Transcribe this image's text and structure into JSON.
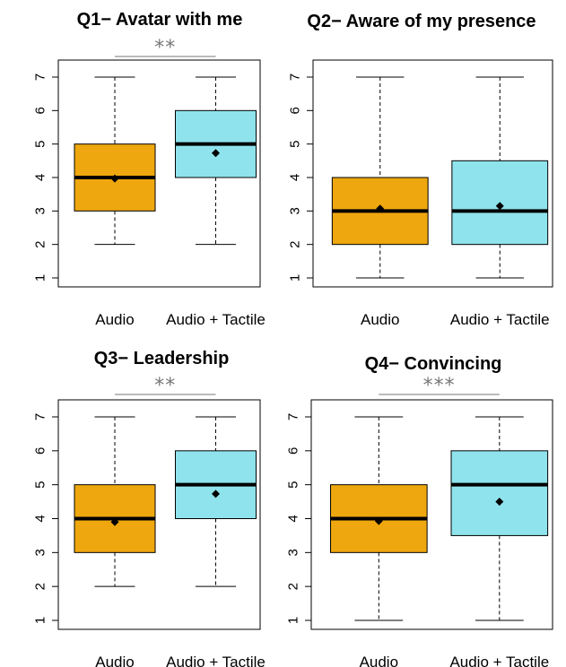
{
  "chart_data": [
    {
      "type": "box",
      "title": "Q1− Avatar with me",
      "categories": [
        "Audio",
        "Audio + Tactile"
      ],
      "ylim": [
        1,
        7
      ],
      "yticks": [
        "1",
        "2",
        "3",
        "4",
        "5",
        "6",
        "7"
      ],
      "significance": "**",
      "colors": [
        "#EEA70E",
        "#8FE3EC"
      ],
      "boxes": [
        {
          "min": 2,
          "q1": 3,
          "median": 4,
          "q3": 5,
          "max": 7,
          "mean": 3.97
        },
        {
          "min": 2,
          "q1": 4,
          "median": 5,
          "q3": 6,
          "max": 7,
          "mean": 4.73
        }
      ]
    },
    {
      "type": "box",
      "title": "Q2− Aware of my presence",
      "categories": [
        "Audio",
        "Audio + Tactile"
      ],
      "ylim": [
        1,
        7
      ],
      "yticks": [
        "1",
        "2",
        "3",
        "4",
        "5",
        "6",
        "7"
      ],
      "significance": "",
      "colors": [
        "#EEA70E",
        "#8FE3EC"
      ],
      "boxes": [
        {
          "min": 1,
          "q1": 2,
          "median": 3,
          "q3": 4,
          "max": 7,
          "mean": 3.07
        },
        {
          "min": 1,
          "q1": 2,
          "median": 3,
          "q3": 4.5,
          "max": 7,
          "mean": 3.15
        }
      ]
    },
    {
      "type": "box",
      "title": "Q3− Leadership",
      "categories": [
        "Audio",
        "Audio + Tactile"
      ],
      "ylim": [
        1,
        7
      ],
      "yticks": [
        "1",
        "2",
        "3",
        "4",
        "5",
        "6",
        "7"
      ],
      "significance": "**",
      "colors": [
        "#EEA70E",
        "#8FE3EC"
      ],
      "boxes": [
        {
          "min": 2,
          "q1": 3,
          "median": 4,
          "q3": 5,
          "max": 7,
          "mean": 3.9
        },
        {
          "min": 2,
          "q1": 4,
          "median": 5,
          "q3": 6,
          "max": 7,
          "mean": 4.73
        }
      ]
    },
    {
      "type": "box",
      "title": "Q4− Convincing",
      "categories": [
        "Audio",
        "Audio + Tactile"
      ],
      "ylim": [
        1,
        7
      ],
      "yticks": [
        "1",
        "2",
        "3",
        "4",
        "5",
        "6",
        "7"
      ],
      "significance": "***",
      "colors": [
        "#EEA70E",
        "#8FE3EC"
      ],
      "boxes": [
        {
          "min": 1,
          "q1": 3,
          "median": 4,
          "q3": 5,
          "max": 7,
          "mean": 3.93
        },
        {
          "min": 1,
          "q1": 3.5,
          "median": 5,
          "q3": 6,
          "max": 7,
          "mean": 4.5
        }
      ]
    }
  ]
}
